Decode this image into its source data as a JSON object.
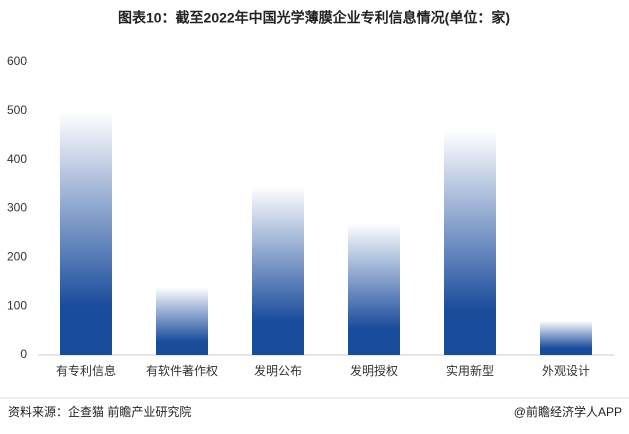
{
  "chart_data": {
    "type": "bar",
    "title": "图表10：截至2022年中国光学薄膜企业专利信息情况(单位：家)",
    "categories": [
      "有专利信息",
      "有软件著作权",
      "发明公布",
      "发明授权",
      "实用新型",
      "外观设计"
    ],
    "values": [
      498,
      139,
      346,
      270,
      459,
      70
    ],
    "color": "#1a4c9c",
    "ylim": [
      0,
      600
    ],
    "yticks": [
      0,
      100,
      200,
      300,
      400,
      500,
      600
    ],
    "grid": false,
    "source": "资料来源：企查猫 前瞻产业研究院",
    "credit": "@前瞻经济学人APP"
  }
}
